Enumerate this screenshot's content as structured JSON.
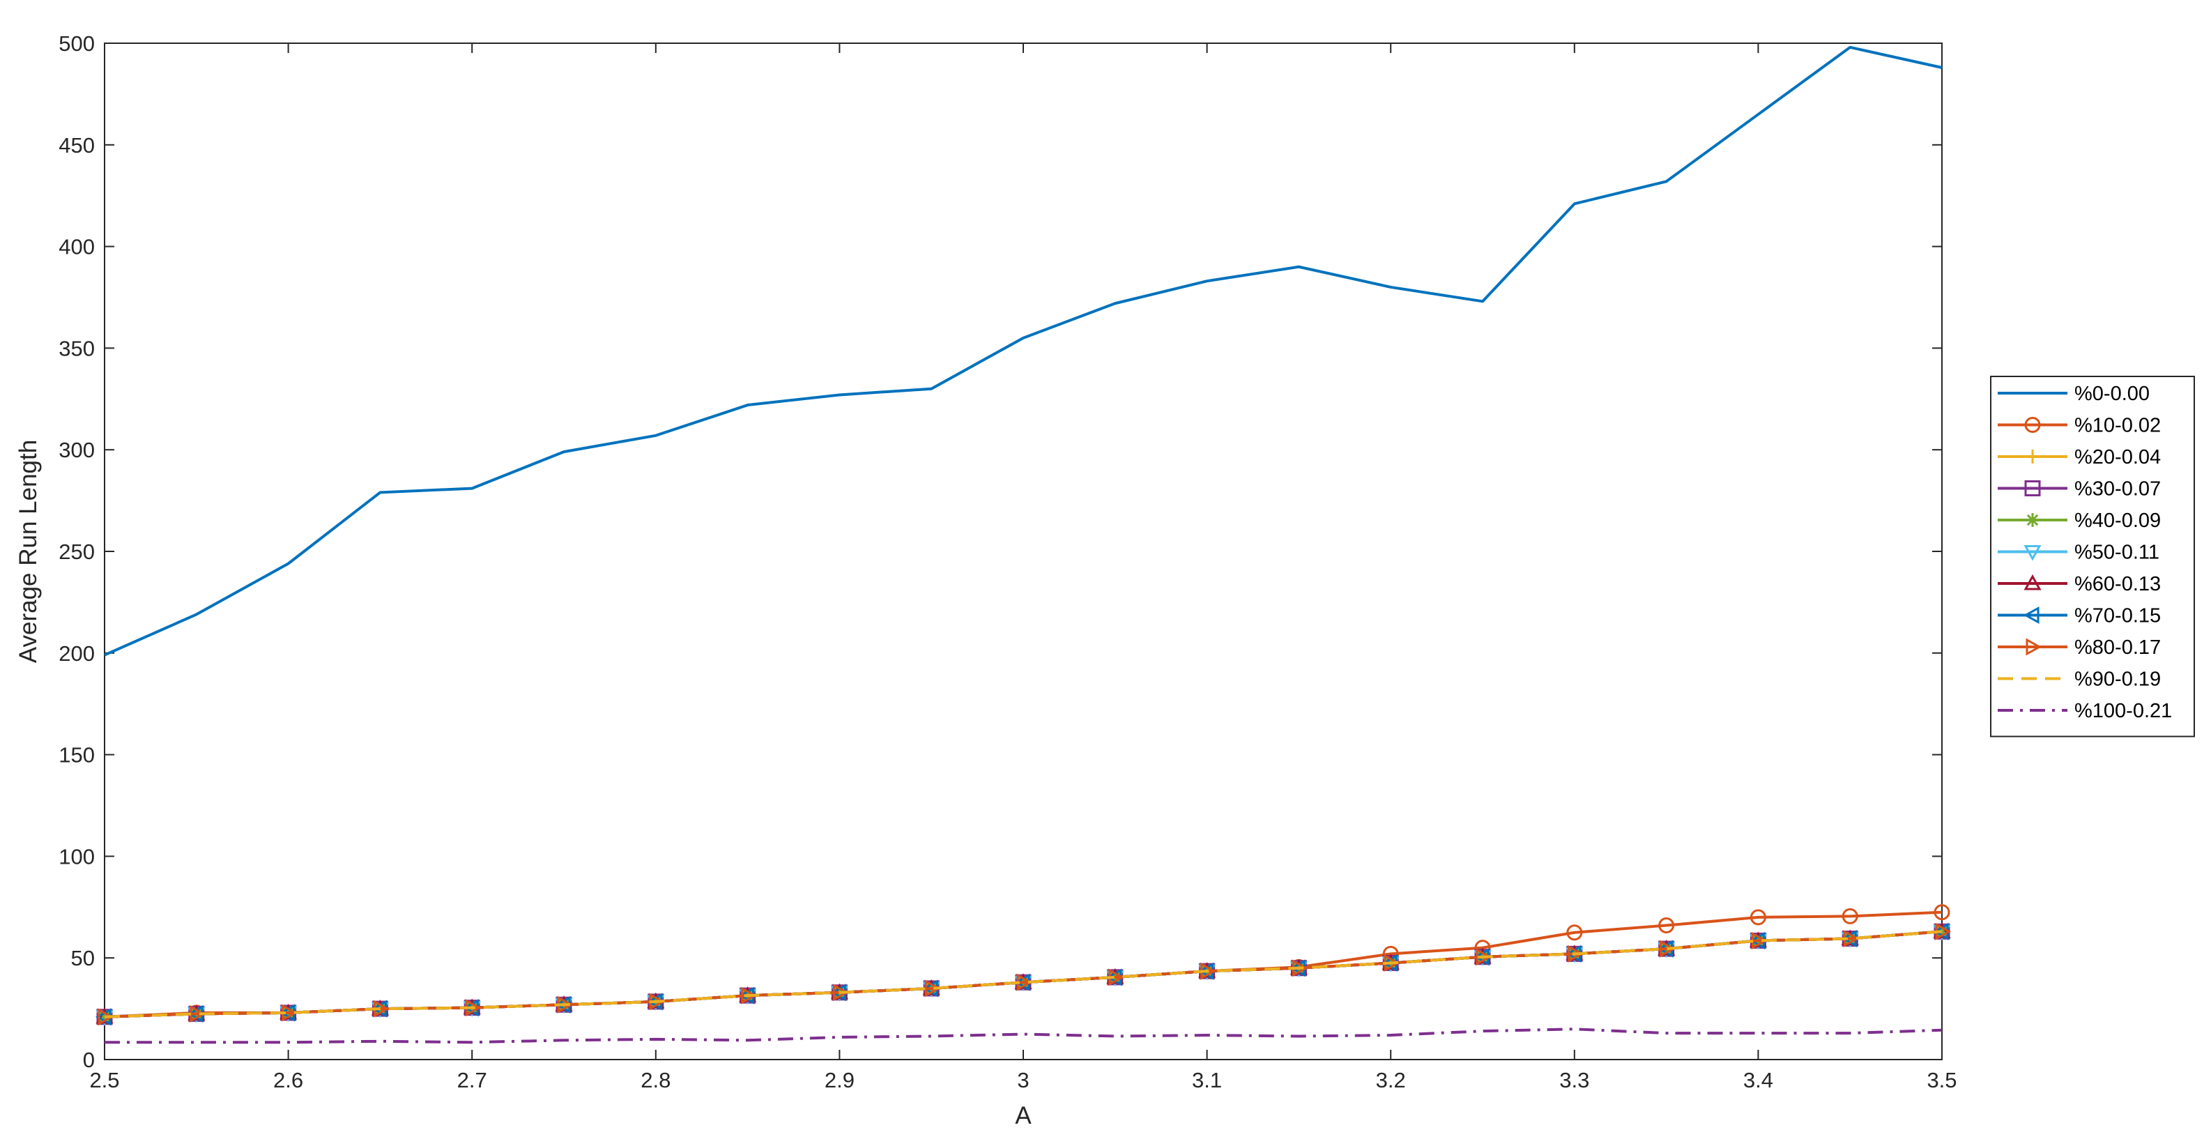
{
  "chart_data": {
    "type": "line",
    "title": "",
    "xlabel": "A",
    "ylabel": "Average Run Length",
    "xlim": [
      2.5,
      3.5
    ],
    "ylim": [
      0,
      500
    ],
    "xticks": [
      "2.5",
      "2.6",
      "2.7",
      "2.8",
      "2.9",
      "3",
      "3.1",
      "3.2",
      "3.3",
      "3.4",
      "3.5"
    ],
    "yticks": [
      "0",
      "50",
      "100",
      "150",
      "200",
      "250",
      "300",
      "350",
      "400",
      "450",
      "500"
    ],
    "grid": false,
    "legend_position": "right-outside",
    "x": [
      2.5,
      2.55,
      2.6,
      2.65,
      2.7,
      2.75,
      2.8,
      2.85,
      2.9,
      2.95,
      3.0,
      3.05,
      3.1,
      3.15,
      3.2,
      3.25,
      3.3,
      3.35,
      3.4,
      3.45,
      3.5
    ],
    "series": [
      {
        "name": "%0-0.00",
        "color": "#0072BD",
        "marker": "none",
        "dash": "solid",
        "values": [
          199,
          219,
          244,
          279,
          281,
          299,
          307,
          322,
          327,
          330,
          355,
          372,
          383,
          390,
          380,
          373,
          421,
          432,
          465,
          498,
          488
        ]
      },
      {
        "name": "%10-0.02",
        "color": "#D95319",
        "marker": "circle",
        "dash": "solid",
        "values": [
          21,
          23,
          23,
          25,
          25.5,
          27,
          28.5,
          31.5,
          33,
          35,
          38,
          40.5,
          43.5,
          45.5,
          52,
          55,
          62.5,
          66,
          70,
          70.5,
          72.5
        ]
      },
      {
        "name": "%20-0.04",
        "color": "#EDB120",
        "marker": "plus",
        "dash": "solid",
        "values": [
          21,
          22.5,
          23,
          25,
          25.5,
          27,
          28.5,
          31.5,
          33,
          35,
          38,
          40.5,
          43.5,
          45,
          47.5,
          50.5,
          52,
          54.5,
          58.5,
          59.5,
          63
        ]
      },
      {
        "name": "%30-0.07",
        "color": "#7E2F8E",
        "marker": "square",
        "dash": "solid",
        "values": [
          21,
          22.5,
          23,
          25,
          25.5,
          27,
          28.5,
          31.5,
          33,
          35,
          38,
          40.5,
          43.5,
          45,
          47.5,
          50.5,
          52,
          54.5,
          58.5,
          59.5,
          63
        ]
      },
      {
        "name": "%40-0.09",
        "color": "#77AC30",
        "marker": "asterisk",
        "dash": "solid",
        "values": [
          21,
          22.5,
          23,
          25,
          25.5,
          27,
          28.5,
          31.5,
          33,
          35,
          38,
          40.5,
          43.5,
          45,
          47.5,
          50.5,
          52,
          54.5,
          58.5,
          59.5,
          63
        ]
      },
      {
        "name": "%50-0.11",
        "color": "#4DBEEE",
        "marker": "triangle-down",
        "dash": "solid",
        "values": [
          21,
          22.5,
          23,
          25,
          25.5,
          27,
          28.5,
          31.5,
          33,
          35,
          38,
          40.5,
          43.5,
          45,
          47.5,
          50.5,
          52,
          54.5,
          58.5,
          59.5,
          63
        ]
      },
      {
        "name": "%60-0.13",
        "color": "#A2142F",
        "marker": "triangle-up",
        "dash": "solid",
        "values": [
          21,
          22.5,
          23,
          25,
          25.5,
          27,
          28.5,
          31.5,
          33,
          35,
          38,
          40.5,
          43.5,
          45,
          47.5,
          50.5,
          52,
          54.5,
          58.5,
          59.5,
          63
        ]
      },
      {
        "name": "%70-0.15",
        "color": "#0072BD",
        "marker": "triangle-left",
        "dash": "solid",
        "values": [
          21,
          22.5,
          23,
          25,
          25.5,
          27,
          28.5,
          31.5,
          33,
          35,
          38,
          40.5,
          43.5,
          45,
          47.5,
          50.5,
          52,
          54.5,
          58.5,
          59.5,
          63
        ]
      },
      {
        "name": "%80-0.17",
        "color": "#D95319",
        "marker": "triangle-right",
        "dash": "solid",
        "values": [
          21,
          22.5,
          23,
          25,
          25.5,
          27,
          28.5,
          31.5,
          33,
          35,
          38,
          40.5,
          43.5,
          45,
          47.5,
          50.5,
          52,
          54.5,
          58.5,
          59.5,
          63
        ]
      },
      {
        "name": "%90-0.19",
        "color": "#EDB120",
        "marker": "none",
        "dash": "dashed",
        "values": [
          21,
          22.5,
          23,
          25,
          25.5,
          27,
          28.5,
          31.5,
          33,
          35,
          38,
          40.5,
          43.5,
          45,
          47.5,
          50.5,
          52,
          54.5,
          58.5,
          59.5,
          63
        ]
      },
      {
        "name": "%100-0.21",
        "color": "#7E2F8E",
        "marker": "none",
        "dash": "dashdot",
        "values": [
          8.5,
          8.5,
          8.5,
          9,
          8.5,
          9.5,
          10,
          9.5,
          11,
          11.5,
          12.5,
          11.5,
          12,
          11.5,
          12,
          14,
          15,
          13,
          13,
          13,
          14.5
        ]
      }
    ]
  }
}
